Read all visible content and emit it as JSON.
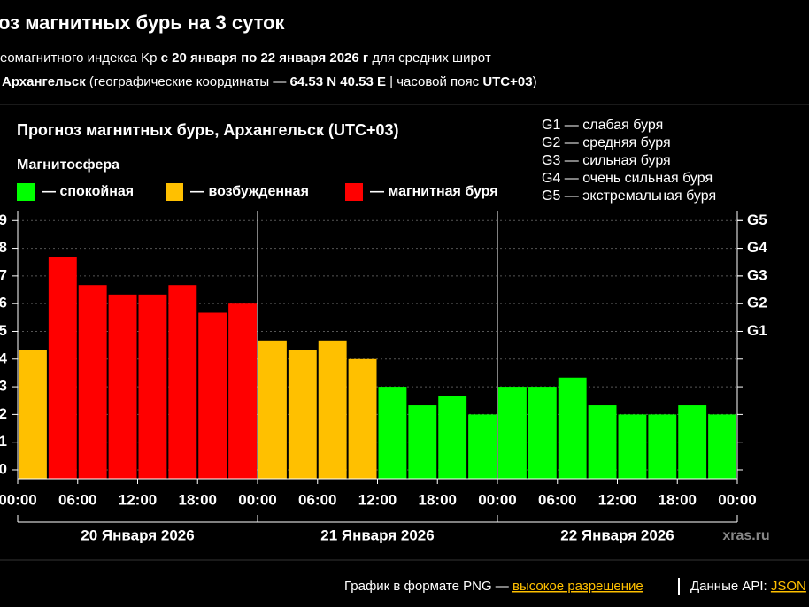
{
  "header": {
    "title": "оз магнитных бурь на 3 суток",
    "line1": [
      "еомагнитного индекса Kp ",
      "с 20 января по 22 января 2026 г",
      " для средних широт"
    ],
    "line2": [
      "Архангельск",
      " (географические координаты — ",
      "64.53 N 40.53 E",
      " | часовой пояс ",
      "UTC+03",
      ")"
    ]
  },
  "chart_data": {
    "type": "bar",
    "title": "Прогноз магнитных бурь, Архангельск (UTC+03)",
    "legend_title": "Магнитосфера",
    "legend": [
      {
        "label": "— спокойная",
        "color": "#00ff00"
      },
      {
        "label": "— возбужденная",
        "color": "#ffc000"
      },
      {
        "label": "— магнитная буря",
        "color": "#ff0000"
      }
    ],
    "scale_notes": [
      "G1 — слабая буря",
      "G2 — средняя буря",
      "G3 — сильная буря",
      "G4 — очень сильная буря",
      "G5 — экстремальная буря"
    ],
    "x": [
      1.5,
      4.5,
      7.5,
      10.5,
      13.5,
      16.5,
      19.5,
      22.5,
      25.5,
      28.5,
      31.5,
      34.5,
      37.5,
      40.5,
      43.5,
      46.5,
      49.5,
      52.5,
      55.5,
      58.5,
      61.5,
      64.5,
      67.5,
      70.5
    ],
    "values": [
      4.33,
      7.67,
      6.67,
      6.33,
      6.33,
      6.67,
      5.67,
      6,
      4.67,
      4.33,
      4.67,
      4,
      3,
      2.33,
      2.67,
      2,
      3,
      3,
      3.33,
      2.33,
      2,
      2,
      2.33,
      2
    ],
    "colors": [
      "#ffc000",
      "#ff0000",
      "#ff0000",
      "#ff0000",
      "#ff0000",
      "#ff0000",
      "#ff0000",
      "#ff0000",
      "#ffc000",
      "#ffc000",
      "#ffc000",
      "#ffc000",
      "#00ff00",
      "#00ff00",
      "#00ff00",
      "#00ff00",
      "#00ff00",
      "#00ff00",
      "#00ff00",
      "#00ff00",
      "#00ff00",
      "#00ff00",
      "#00ff00",
      "#00ff00"
    ],
    "xlim": [
      0,
      72
    ],
    "xticks": [
      {
        "value": 0,
        "label": "00:00"
      },
      {
        "value": 6,
        "label": "06:00"
      },
      {
        "value": 12,
        "label": "12:00"
      },
      {
        "value": 18,
        "label": "18:00"
      },
      {
        "value": 24,
        "label": "00:00"
      },
      {
        "value": 30,
        "label": "06:00"
      },
      {
        "value": 36,
        "label": "12:00"
      },
      {
        "value": 42,
        "label": "18:00"
      },
      {
        "value": 48,
        "label": "00:00"
      },
      {
        "value": 54,
        "label": "06:00"
      },
      {
        "value": 60,
        "label": "12:00"
      },
      {
        "value": 66,
        "label": "18:00"
      },
      {
        "value": 72,
        "label": "00:00"
      }
    ],
    "ylim": [
      -0.32,
      9.36
    ],
    "yticks": [
      0,
      1,
      2,
      3,
      4,
      5,
      6,
      7,
      8,
      9
    ],
    "y2lim": [
      -0.32,
      9.36
    ],
    "y2ticks": [
      {
        "value": 5,
        "label": "G1"
      },
      {
        "value": 6,
        "label": "G2"
      },
      {
        "value": 7,
        "label": "G3"
      },
      {
        "value": 8,
        "label": "G4"
      },
      {
        "value": 9,
        "label": "G5"
      }
    ],
    "grid": true,
    "days": [
      "20 Января 2026",
      "21 Января 2026",
      "22 Января 2026"
    ],
    "watermark": "xras.ru"
  },
  "footer": {
    "text": "График в формате PNG — ",
    "link": "высокое разрешение",
    "api_label": "Данные API: ",
    "api_link": "JSON"
  }
}
